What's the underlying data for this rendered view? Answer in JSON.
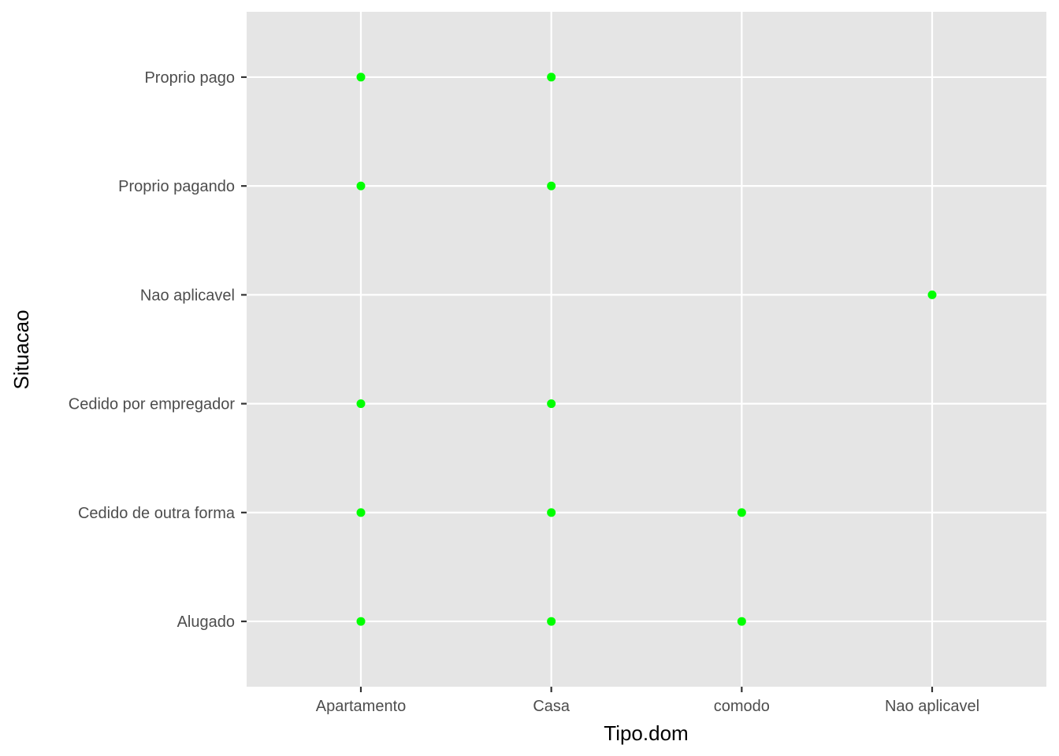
{
  "chart_data": {
    "type": "scatter",
    "xlabel": "Tipo.dom",
    "ylabel": "Situacao",
    "x_categories": [
      "Apartamento",
      "Casa",
      "comodo",
      "Nao aplicavel"
    ],
    "y_categories": [
      "Alugado",
      "Cedido de outra forma",
      "Cedido por empregador",
      "Nao aplicavel",
      "Proprio pagando",
      "Proprio pago"
    ],
    "points": [
      {
        "x": "Apartamento",
        "y": "Proprio pago"
      },
      {
        "x": "Casa",
        "y": "Proprio pago"
      },
      {
        "x": "Apartamento",
        "y": "Proprio pagando"
      },
      {
        "x": "Casa",
        "y": "Proprio pagando"
      },
      {
        "x": "Nao aplicavel",
        "y": "Nao aplicavel"
      },
      {
        "x": "Apartamento",
        "y": "Cedido por empregador"
      },
      {
        "x": "Casa",
        "y": "Cedido por empregador"
      },
      {
        "x": "Apartamento",
        "y": "Cedido de outra forma"
      },
      {
        "x": "Casa",
        "y": "Cedido de outra forma"
      },
      {
        "x": "comodo",
        "y": "Cedido de outra forma"
      },
      {
        "x": "Apartamento",
        "y": "Alugado"
      },
      {
        "x": "Casa",
        "y": "Alugado"
      },
      {
        "x": "comodo",
        "y": "Alugado"
      }
    ],
    "point_color": "#00ff00",
    "panel_background": "#e5e5e5",
    "grid": true,
    "legend": "none"
  }
}
